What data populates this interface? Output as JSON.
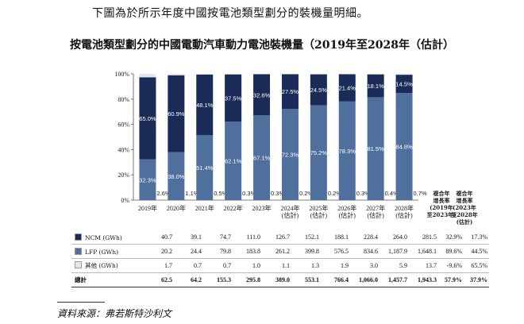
{
  "intro_text": "下圖為於所示年度中國按電池類型劃分的裝機量明細。",
  "chart_data": {
    "type": "bar",
    "stacked": true,
    "title": "按電池類型劃分的中國電動汽車動力電池裝機量（2019年至2028年（估計）",
    "categories": [
      "2019年",
      "2020年",
      "2021年",
      "2022年",
      "2023年",
      "2024年\n(估計)",
      "2025年\n(估計)",
      "2026年\n(估計)",
      "2027年\n(估計)",
      "2028年\n(估計)"
    ],
    "ylim": [
      0,
      100
    ],
    "yticks": [
      "0%",
      "20%",
      "40%",
      "60%",
      "80%",
      "100%"
    ],
    "series": [
      {
        "name": "LFP (GWh)",
        "color": "#4f6f9c",
        "values": [
          32.3,
          38.0,
          51.4,
          62.1,
          67.1,
          72.3,
          75.2,
          78.3,
          81.5,
          84.8
        ],
        "labels": [
          "32.3%",
          "38.0%",
          "51.4%",
          "62.1%",
          "67.1%",
          "72.3%",
          "75.2%",
          "78.3%",
          "81.5%",
          "84.8%"
        ]
      },
      {
        "name": "NCM (GWh)",
        "color": "#1a2b58",
        "values": [
          65.0,
          60.9,
          48.1,
          37.5,
          32.6,
          27.5,
          24.5,
          21.4,
          18.1,
          14.5
        ],
        "labels": [
          "65.0%",
          "60.9%",
          "48.1%",
          "37.5%",
          "32.6%",
          "27.5%",
          "24.5%",
          "21.4%",
          "18.1%",
          "14.5%"
        ]
      },
      {
        "name": "其他 (GWh)",
        "color": "#e3e7ef",
        "values": [
          2.6,
          1.1,
          0.5,
          0.3,
          0.3,
          0.2,
          0.2,
          0.3,
          0.4,
          0.7
        ],
        "labels": [
          "2.6%",
          "1.1%",
          "0.5%",
          "0.3%",
          "0.3%",
          "0.2%",
          "0.2%",
          "0.3%",
          "0.4%",
          "0.7%"
        ]
      }
    ],
    "cagr_headers": [
      "複合年\n增長率\n(2019年\n至2023年)",
      "複合年\n增長率\n(2023年\n至2028年\n(估計)"
    ],
    "table": {
      "rows": [
        {
          "label": "NCM (GWh)",
          "swatch": "#1a2b58",
          "values": [
            "40.7",
            "39.1",
            "74.7",
            "111.0",
            "126.7",
            "152.1",
            "188.1",
            "228.4",
            "264.0",
            "281.5"
          ],
          "cagr": [
            "32.9%",
            "17.3%"
          ]
        },
        {
          "label": "LFP (GWh)",
          "swatch": "#4f6f9c",
          "values": [
            "20.2",
            "24.4",
            "79.8",
            "183.8",
            "261.2",
            "399.8",
            "576.5",
            "834.6",
            "1,187.9",
            "1,648.1"
          ],
          "cagr": [
            "89.6%",
            "44.5%"
          ]
        },
        {
          "label": "其他 (GWh)",
          "swatch": "#e3e7ef",
          "values": [
            "1.7",
            "0.7",
            "0.7",
            "1.0",
            "1.1",
            "1.3",
            "1.9",
            "3.0",
            "5.9",
            "13.7"
          ],
          "cagr": [
            "-9.6%",
            "65.5%"
          ]
        }
      ],
      "total": {
        "label": "總計",
        "values": [
          "62.5",
          "64.2",
          "155.3",
          "295.8",
          "389.0",
          "553.1",
          "766.4",
          "1,066.0",
          "1,457.7",
          "1,943.3"
        ],
        "cagr": [
          "57.9%",
          "37.9%"
        ]
      }
    }
  },
  "source": "資料來源：弗若斯特沙利文"
}
